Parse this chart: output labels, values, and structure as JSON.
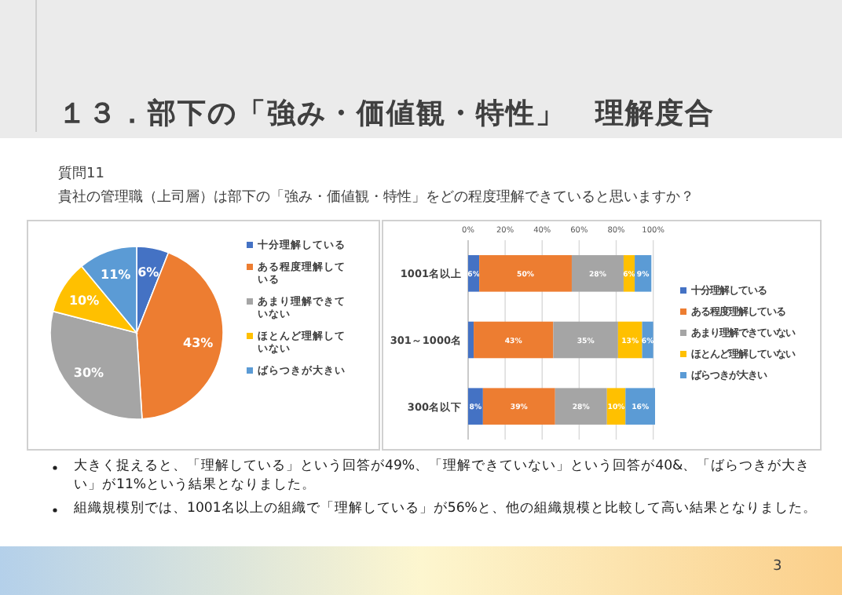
{
  "chart_data": [
    {
      "type": "pie",
      "title": "１３．部下の「強み・価値観・特性」　理解度合",
      "subtitle": "質問11",
      "annotations": [
        "貴社の管理職（上司層）は部下の「強み・価値観・特性」をどの程度理解できていると思いますか？",
        "大きく捉えると、「理解している」という回答が49%、「理解できていない」という回答が40&、「ばらつきが大きい」が11%という結果となりました。",
        "組織規模別では、1001名以上の組織で「理解している」が56%と、他の組織規模と比較して高い結果となりました。",
        "3"
      ],
      "categories": [
        "十分理解している",
        "ある程度理解している",
        "あまり理解できていない",
        "ほとんど理解していない",
        "ばらつきが大きい"
      ],
      "values": [
        6,
        43,
        30,
        10,
        11
      ],
      "colors": [
        "#4472c4",
        "#ed7d31",
        "#a5a5a5",
        "#ffc000",
        "#5b9bd5"
      ],
      "value_labels": [
        "6%",
        "43%",
        "30%",
        "10%",
        "11%"
      ],
      "legend": "right"
    },
    {
      "type": "bar",
      "orientation": "horizontal",
      "stacked": true,
      "categories": [
        "1001名以上",
        "301～1000名",
        "300名以下"
      ],
      "series": [
        {
          "name": "十分理解している",
          "color": "#4472c4",
          "values": [
            6,
            3,
            8
          ],
          "value_labels": [
            "6%",
            null,
            "8%"
          ]
        },
        {
          "name": "ある程度理解している",
          "color": "#ed7d31",
          "values": [
            50,
            43,
            39
          ],
          "value_labels": [
            "50%",
            "43%",
            "39%"
          ]
        },
        {
          "name": "あまり理解できていない",
          "color": "#a5a5a5",
          "values": [
            28,
            35,
            28
          ],
          "value_labels": [
            "28%",
            "35%",
            "28%"
          ]
        },
        {
          "name": "ほとんど理解していない",
          "color": "#ffc000",
          "values": [
            6,
            13,
            10
          ],
          "value_labels": [
            "6%",
            "13%",
            "10%"
          ]
        },
        {
          "name": "ばらつきが大きい",
          "color": "#5b9bd5",
          "values": [
            9,
            6,
            16
          ],
          "value_labels": [
            "9%",
            "6%",
            "16%"
          ]
        }
      ],
      "xlim": [
        0,
        101
      ],
      "xticks": [
        {
          "value": 0,
          "label": "0%"
        },
        {
          "value": 20,
          "label": "20%"
        },
        {
          "value": 40,
          "label": "40%"
        },
        {
          "value": 60,
          "label": "60%"
        },
        {
          "value": 80,
          "label": "80%"
        },
        {
          "value": 100,
          "label": "100%"
        }
      ],
      "grid": "x",
      "legend": "right"
    }
  ]
}
